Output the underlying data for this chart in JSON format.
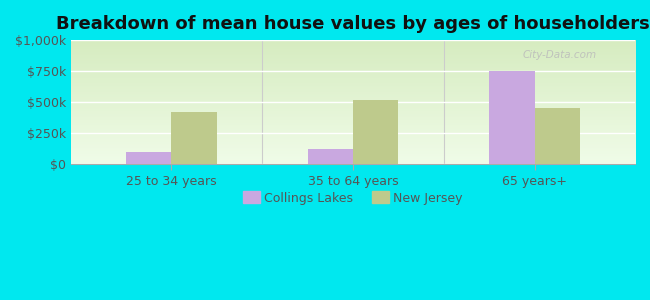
{
  "title": "Breakdown of mean house values by ages of householders",
  "categories": [
    "25 to 34 years",
    "35 to 64 years",
    "65 years+"
  ],
  "collings_lakes": [
    100000,
    120000,
    750000
  ],
  "new_jersey": [
    420000,
    520000,
    450000
  ],
  "collings_color": "#c9a8e0",
  "new_jersey_color": "#beca8c",
  "background_color": "#00e8ef",
  "plot_bg_top": "#d6ecc0",
  "plot_bg_bottom": "#f0fce8",
  "ylim": [
    0,
    1000000
  ],
  "yticks": [
    0,
    250000,
    500000,
    750000,
    1000000
  ],
  "ytick_labels": [
    "$0",
    "$250k",
    "$500k",
    "$750k",
    "$1,000k"
  ],
  "bar_width": 0.25,
  "legend_labels": [
    "Collings Lakes",
    "New Jersey"
  ],
  "watermark": "City-Data.com",
  "title_fontsize": 13,
  "tick_label_color": "#555555",
  "grid_color": "#ffffff",
  "separator_color": "#cccccc"
}
